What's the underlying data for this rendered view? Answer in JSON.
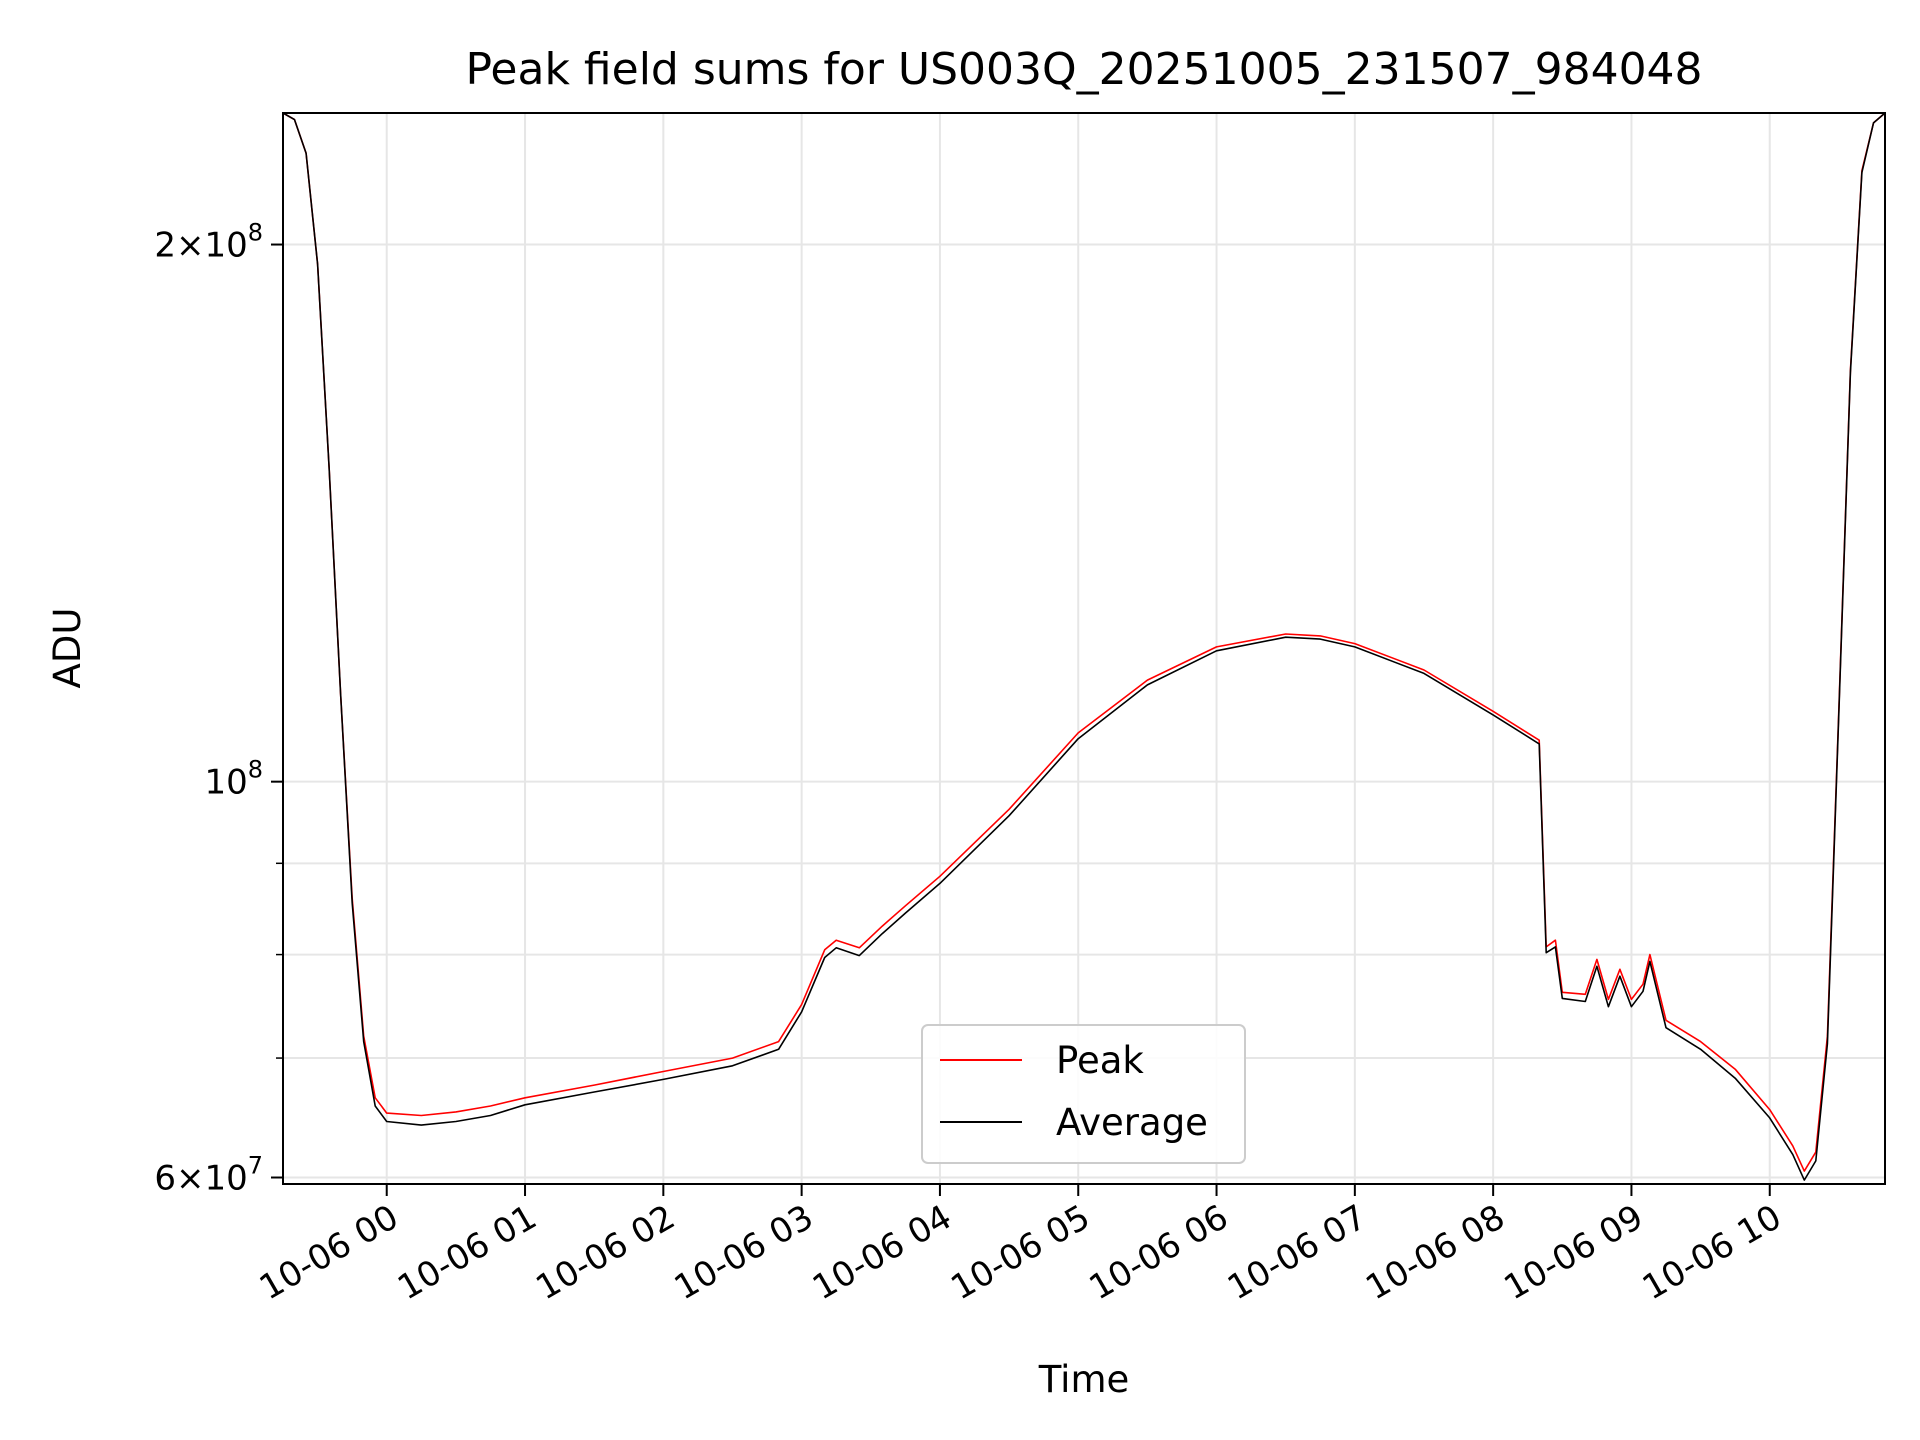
{
  "chart_data": {
    "type": "line",
    "title": "Peak field sums for US003Q_20251005_231507_984048",
    "xlabel": "Time",
    "ylabel": "ADU",
    "yscale": "log",
    "ylim": [
      59500000,
      237000000
    ],
    "xlim": [
      "2025-10-05 23:15",
      "2025-10-06 10:50"
    ],
    "x_ticks": [
      "10-06 00",
      "10-06 01",
      "10-06 02",
      "10-06 03",
      "10-06 04",
      "10-06 05",
      "10-06 06",
      "10-06 07",
      "10-06 08",
      "10-06 09",
      "10-06 10"
    ],
    "y_ticks": [
      {
        "value": 200000000,
        "mant": "2",
        "exp": "8"
      },
      {
        "value": 100000000,
        "mant": "",
        "exp": "8"
      },
      {
        "value": 60000000,
        "mant": "6",
        "exp": "7"
      }
    ],
    "y_minor_ticks": [
      70000000,
      80000000,
      90000000
    ],
    "grid": true,
    "legend_position": "lower-center",
    "series": [
      {
        "name": "Peak",
        "color": "#ff0000",
        "points": [
          [
            "2025-10-05 23:15",
            237000000
          ],
          [
            "2025-10-05 23:20",
            235000000
          ],
          [
            "2025-10-05 23:25",
            225000000
          ],
          [
            "2025-10-05 23:30",
            195000000
          ],
          [
            "2025-10-05 23:35",
            150000000
          ],
          [
            "2025-10-05 23:40",
            112000000
          ],
          [
            "2025-10-05 23:45",
            86000000
          ],
          [
            "2025-10-05 23:50",
            72000000
          ],
          [
            "2025-10-05 23:55",
            66500000
          ],
          [
            "2025-10-06 00:00",
            65200000
          ],
          [
            "2025-10-06 00:15",
            65000000
          ],
          [
            "2025-10-06 00:30",
            65300000
          ],
          [
            "2025-10-06 00:45",
            65800000
          ],
          [
            "2025-10-06 01:00",
            66500000
          ],
          [
            "2025-10-06 01:30",
            67600000
          ],
          [
            "2025-10-06 02:00",
            68800000
          ],
          [
            "2025-10-06 02:30",
            70000000
          ],
          [
            "2025-10-06 02:50",
            71500000
          ],
          [
            "2025-10-06 03:00",
            75000000
          ],
          [
            "2025-10-06 03:10",
            80500000
          ],
          [
            "2025-10-06 03:15",
            81500000
          ],
          [
            "2025-10-06 03:25",
            80700000
          ],
          [
            "2025-10-06 03:35",
            83000000
          ],
          [
            "2025-10-06 03:45",
            85200000
          ],
          [
            "2025-10-06 04:00",
            88500000
          ],
          [
            "2025-10-06 04:30",
            96500000
          ],
          [
            "2025-10-06 05:00",
            106500000
          ],
          [
            "2025-10-06 05:30",
            114000000
          ],
          [
            "2025-10-06 06:00",
            119000000
          ],
          [
            "2025-10-06 06:30",
            121000000
          ],
          [
            "2025-10-06 06:45",
            120700000
          ],
          [
            "2025-10-06 07:00",
            119500000
          ],
          [
            "2025-10-06 07:30",
            115500000
          ],
          [
            "2025-10-06 08:00",
            109500000
          ],
          [
            "2025-10-06 08:20",
            105500000
          ],
          [
            "2025-10-06 08:23",
            80800000
          ],
          [
            "2025-10-06 08:27",
            81500000
          ],
          [
            "2025-10-06 08:30",
            76200000
          ],
          [
            "2025-10-06 08:40",
            76000000
          ],
          [
            "2025-10-06 08:45",
            79500000
          ],
          [
            "2025-10-06 08:50",
            75500000
          ],
          [
            "2025-10-06 08:55",
            78500000
          ],
          [
            "2025-10-06 09:00",
            75500000
          ],
          [
            "2025-10-06 09:05",
            77000000
          ],
          [
            "2025-10-06 09:08",
            80000000
          ],
          [
            "2025-10-06 09:15",
            73500000
          ],
          [
            "2025-10-06 09:30",
            71500000
          ],
          [
            "2025-10-06 09:45",
            69000000
          ],
          [
            "2025-10-06 10:00",
            65500000
          ],
          [
            "2025-10-06 10:10",
            62500000
          ],
          [
            "2025-10-06 10:15",
            60500000
          ],
          [
            "2025-10-06 10:20",
            62000000
          ],
          [
            "2025-10-06 10:25",
            72000000
          ],
          [
            "2025-10-06 10:30",
            110000000
          ],
          [
            "2025-10-06 10:35",
            170000000
          ],
          [
            "2025-10-06 10:40",
            220000000
          ],
          [
            "2025-10-06 10:45",
            234000000
          ],
          [
            "2025-10-06 10:50",
            237000000
          ]
        ]
      },
      {
        "name": "Average",
        "color": "#000000",
        "points": [
          [
            "2025-10-05 23:15",
            237000000
          ],
          [
            "2025-10-05 23:20",
            235000000
          ],
          [
            "2025-10-05 23:25",
            225000000
          ],
          [
            "2025-10-05 23:30",
            195000000
          ],
          [
            "2025-10-05 23:35",
            150000000
          ],
          [
            "2025-10-05 23:40",
            112000000
          ],
          [
            "2025-10-05 23:45",
            85500000
          ],
          [
            "2025-10-05 23:50",
            71500000
          ],
          [
            "2025-10-05 23:55",
            65800000
          ],
          [
            "2025-10-06 00:00",
            64500000
          ],
          [
            "2025-10-06 00:15",
            64200000
          ],
          [
            "2025-10-06 00:30",
            64500000
          ],
          [
            "2025-10-06 00:45",
            65000000
          ],
          [
            "2025-10-06 01:00",
            65900000
          ],
          [
            "2025-10-06 01:30",
            67000000
          ],
          [
            "2025-10-06 02:00",
            68100000
          ],
          [
            "2025-10-06 02:30",
            69300000
          ],
          [
            "2025-10-06 02:50",
            70800000
          ],
          [
            "2025-10-06 03:00",
            74300000
          ],
          [
            "2025-10-06 03:10",
            79700000
          ],
          [
            "2025-10-06 03:15",
            80700000
          ],
          [
            "2025-10-06 03:25",
            79900000
          ],
          [
            "2025-10-06 03:35",
            82200000
          ],
          [
            "2025-10-06 03:45",
            84400000
          ],
          [
            "2025-10-06 04:00",
            87700000
          ],
          [
            "2025-10-06 04:30",
            95700000
          ],
          [
            "2025-10-06 05:00",
            105700000
          ],
          [
            "2025-10-06 05:30",
            113300000
          ],
          [
            "2025-10-06 06:00",
            118400000
          ],
          [
            "2025-10-06 06:30",
            120500000
          ],
          [
            "2025-10-06 06:45",
            120200000
          ],
          [
            "2025-10-06 07:00",
            119000000
          ],
          [
            "2025-10-06 07:30",
            115000000
          ],
          [
            "2025-10-06 08:00",
            109000000
          ],
          [
            "2025-10-06 08:20",
            105000000
          ],
          [
            "2025-10-06 08:23",
            80200000
          ],
          [
            "2025-10-06 08:27",
            80800000
          ],
          [
            "2025-10-06 08:30",
            75600000
          ],
          [
            "2025-10-06 08:40",
            75300000
          ],
          [
            "2025-10-06 08:45",
            78800000
          ],
          [
            "2025-10-06 08:50",
            74800000
          ],
          [
            "2025-10-06 08:55",
            77800000
          ],
          [
            "2025-10-06 09:00",
            74800000
          ],
          [
            "2025-10-06 09:05",
            76300000
          ],
          [
            "2025-10-06 09:08",
            79300000
          ],
          [
            "2025-10-06 09:15",
            72800000
          ],
          [
            "2025-10-06 09:30",
            70800000
          ],
          [
            "2025-10-06 09:45",
            68200000
          ],
          [
            "2025-10-06 10:00",
            64800000
          ],
          [
            "2025-10-06 10:10",
            61800000
          ],
          [
            "2025-10-06 10:15",
            59800000
          ],
          [
            "2025-10-06 10:20",
            61300000
          ],
          [
            "2025-10-06 10:25",
            71300000
          ],
          [
            "2025-10-06 10:30",
            109500000
          ],
          [
            "2025-10-06 10:35",
            169500000
          ],
          [
            "2025-10-06 10:40",
            219500000
          ],
          [
            "2025-10-06 10:45",
            234000000
          ],
          [
            "2025-10-06 10:50",
            237000000
          ]
        ]
      }
    ]
  }
}
